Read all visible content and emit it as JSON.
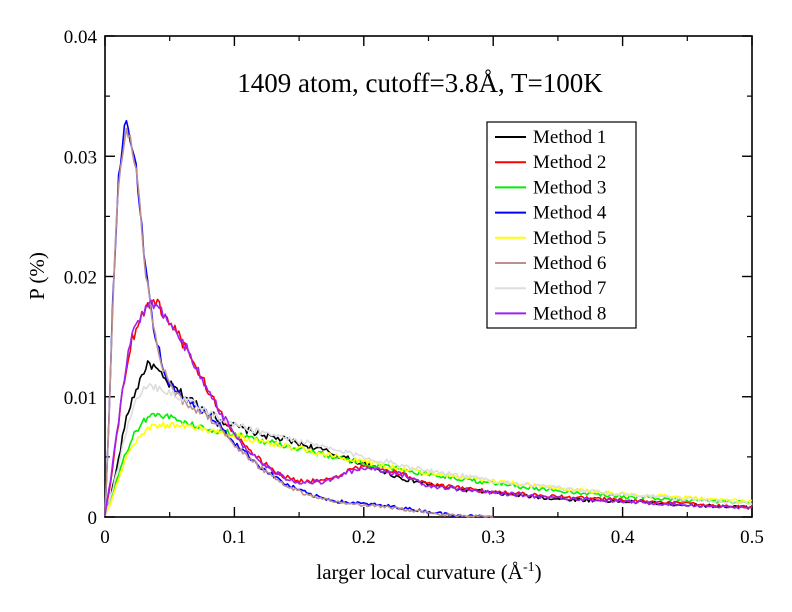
{
  "chart_data": {
    "type": "line",
    "title": "1409 atom, cutoff=3.8Å, T=100K",
    "xlabel": {
      "main": "larger local curvature (Å",
      "sup": "-1",
      "close": ")"
    },
    "ylabel": "P (%)",
    "xlim": [
      0,
      0.5
    ],
    "ylim": [
      0,
      0.04
    ],
    "xticks": [
      "0",
      "0.1",
      "0.2",
      "0.3",
      "0.4",
      "0.5"
    ],
    "yticks": [
      "0",
      "0.01",
      "0.02",
      "0.03",
      "0.04"
    ],
    "grid": false,
    "legend_position": "top-right",
    "series": [
      {
        "name": "Method 1",
        "color": "#000000",
        "x": [
          0,
          0.005,
          0.01,
          0.015,
          0.02,
          0.025,
          0.03,
          0.035,
          0.04,
          0.045,
          0.05,
          0.06,
          0.07,
          0.08,
          0.09,
          0.1,
          0.11,
          0.12,
          0.13,
          0.14,
          0.15,
          0.17,
          0.2,
          0.23,
          0.26,
          0.3,
          0.35,
          0.4,
          0.45,
          0.5
        ],
        "y": [
          0.0001,
          0.002,
          0.0045,
          0.0075,
          0.0095,
          0.0108,
          0.0122,
          0.0128,
          0.0122,
          0.0115,
          0.011,
          0.0102,
          0.0095,
          0.0087,
          0.008,
          0.0076,
          0.0072,
          0.0069,
          0.0066,
          0.0064,
          0.0061,
          0.0055,
          0.0044,
          0.0032,
          0.0025,
          0.002,
          0.0015,
          0.0013,
          0.001,
          0.0008
        ]
      },
      {
        "name": "Method 2",
        "color": "#ff0000",
        "x": [
          0,
          0.005,
          0.01,
          0.015,
          0.02,
          0.025,
          0.03,
          0.035,
          0.04,
          0.045,
          0.05,
          0.06,
          0.07,
          0.08,
          0.09,
          0.1,
          0.11,
          0.12,
          0.13,
          0.14,
          0.15,
          0.17,
          0.19,
          0.2,
          0.21,
          0.23,
          0.25,
          0.3,
          0.35,
          0.4,
          0.45,
          0.5
        ],
        "y": [
          0.0001,
          0.0035,
          0.0075,
          0.0115,
          0.0145,
          0.016,
          0.0172,
          0.0178,
          0.0177,
          0.017,
          0.0162,
          0.0145,
          0.0125,
          0.0105,
          0.0085,
          0.007,
          0.0057,
          0.0047,
          0.0039,
          0.0033,
          0.003,
          0.003,
          0.0039,
          0.0042,
          0.0041,
          0.0036,
          0.0027,
          0.0021,
          0.0017,
          0.0014,
          0.0011,
          0.0008
        ]
      },
      {
        "name": "Method 3",
        "color": "#00ee00",
        "x": [
          0,
          0.005,
          0.01,
          0.015,
          0.02,
          0.025,
          0.03,
          0.035,
          0.04,
          0.05,
          0.06,
          0.07,
          0.08,
          0.1,
          0.12,
          0.15,
          0.18,
          0.2,
          0.23,
          0.26,
          0.3,
          0.35,
          0.4,
          0.45,
          0.5
        ],
        "y": [
          0.0001,
          0.0015,
          0.0033,
          0.005,
          0.0063,
          0.0073,
          0.008,
          0.0085,
          0.0086,
          0.0083,
          0.0079,
          0.0076,
          0.0073,
          0.0069,
          0.0064,
          0.0057,
          0.0049,
          0.0045,
          0.0039,
          0.0034,
          0.0028,
          0.0022,
          0.0017,
          0.0014,
          0.0012
        ]
      },
      {
        "name": "Method 4",
        "color": "#0000ff",
        "x": [
          0,
          0.003,
          0.006,
          0.01,
          0.013,
          0.016,
          0.018,
          0.02,
          0.022,
          0.025,
          0.028,
          0.03,
          0.035,
          0.04,
          0.045,
          0.05,
          0.06,
          0.07,
          0.08,
          0.09,
          0.1,
          0.12,
          0.14,
          0.16,
          0.18,
          0.2,
          0.22,
          0.24,
          0.26,
          0.28,
          0.3
        ],
        "y": [
          0.0002,
          0.008,
          0.018,
          0.027,
          0.031,
          0.0328,
          0.0325,
          0.032,
          0.0305,
          0.028,
          0.025,
          0.022,
          0.0175,
          0.0145,
          0.0125,
          0.011,
          0.0098,
          0.0092,
          0.0085,
          0.0075,
          0.0062,
          0.0042,
          0.0027,
          0.0018,
          0.0013,
          0.0011,
          0.0009,
          0.0006,
          0.0003,
          0.0001,
          0.0
        ]
      },
      {
        "name": "Method 5",
        "color": "#ffff00",
        "x": [
          0,
          0.005,
          0.01,
          0.015,
          0.02,
          0.025,
          0.03,
          0.035,
          0.04,
          0.05,
          0.06,
          0.07,
          0.08,
          0.1,
          0.12,
          0.15,
          0.18,
          0.2,
          0.23,
          0.26,
          0.3,
          0.35,
          0.4,
          0.45,
          0.5
        ],
        "y": [
          0.0001,
          0.0013,
          0.003,
          0.0045,
          0.0057,
          0.0065,
          0.007,
          0.0074,
          0.0076,
          0.0077,
          0.0076,
          0.0074,
          0.0072,
          0.0068,
          0.0063,
          0.0057,
          0.005,
          0.0046,
          0.004,
          0.0035,
          0.003,
          0.0024,
          0.0019,
          0.0016,
          0.0013
        ]
      },
      {
        "name": "Method 6",
        "color": "#bc8f8f",
        "x": [
          0,
          0.003,
          0.006,
          0.01,
          0.013,
          0.016,
          0.018,
          0.02,
          0.022,
          0.025,
          0.028,
          0.03,
          0.035,
          0.04,
          0.045,
          0.05,
          0.06,
          0.07,
          0.08,
          0.09,
          0.1,
          0.12,
          0.14,
          0.16,
          0.18,
          0.2,
          0.22,
          0.24,
          0.26,
          0.28,
          0.3
        ],
        "y": [
          0.0002,
          0.0078,
          0.0178,
          0.0268,
          0.0305,
          0.0322,
          0.032,
          0.0316,
          0.03,
          0.0277,
          0.0247,
          0.0218,
          0.0173,
          0.0143,
          0.0123,
          0.0108,
          0.0097,
          0.009,
          0.0083,
          0.0073,
          0.006,
          0.0041,
          0.0026,
          0.0017,
          0.0012,
          0.001,
          0.0008,
          0.0005,
          0.0002,
          0.0001,
          0.0
        ]
      },
      {
        "name": "Method 7",
        "color": "#dddddd",
        "x": [
          0,
          0.005,
          0.01,
          0.015,
          0.02,
          0.025,
          0.03,
          0.035,
          0.04,
          0.05,
          0.06,
          0.07,
          0.08,
          0.09,
          0.1,
          0.12,
          0.15,
          0.18,
          0.2,
          0.23,
          0.26,
          0.3,
          0.35,
          0.4,
          0.45,
          0.5
        ],
        "y": [
          0.0001,
          0.0018,
          0.004,
          0.0065,
          0.0085,
          0.0098,
          0.0105,
          0.011,
          0.0108,
          0.0104,
          0.0099,
          0.0093,
          0.0087,
          0.0081,
          0.0077,
          0.0071,
          0.0063,
          0.0055,
          0.005,
          0.0043,
          0.0037,
          0.003,
          0.0024,
          0.0019,
          0.0015,
          0.0011
        ]
      },
      {
        "name": "Method 8",
        "color": "#a020f0",
        "x": [
          0,
          0.005,
          0.01,
          0.015,
          0.02,
          0.025,
          0.03,
          0.035,
          0.04,
          0.045,
          0.05,
          0.06,
          0.07,
          0.08,
          0.09,
          0.1,
          0.11,
          0.12,
          0.13,
          0.14,
          0.15,
          0.17,
          0.19,
          0.2,
          0.21,
          0.23,
          0.25,
          0.3,
          0.35,
          0.4,
          0.45,
          0.5
        ],
        "y": [
          0.0001,
          0.0036,
          0.0076,
          0.0116,
          0.0146,
          0.0161,
          0.0173,
          0.0179,
          0.0176,
          0.0171,
          0.0163,
          0.0146,
          0.0126,
          0.0104,
          0.0086,
          0.0069,
          0.0056,
          0.0046,
          0.0038,
          0.0032,
          0.0029,
          0.0029,
          0.0038,
          0.0041,
          0.004,
          0.0035,
          0.0026,
          0.002,
          0.0016,
          0.0013,
          0.001,
          0.0007
        ]
      }
    ]
  }
}
